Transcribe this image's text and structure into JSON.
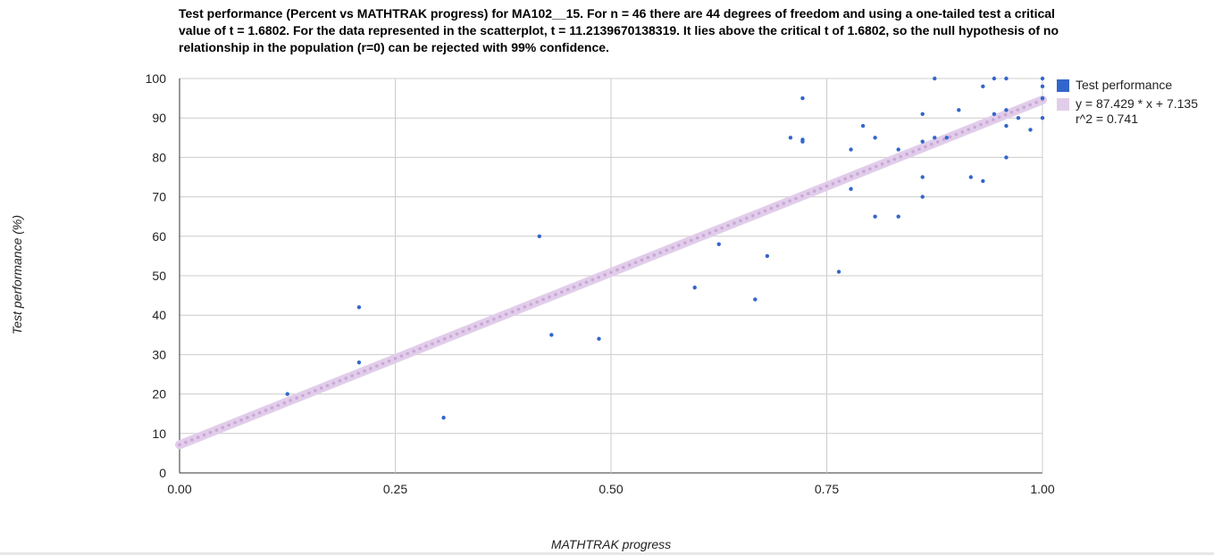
{
  "chart_data": {
    "type": "scatter",
    "title": "Test performance (Percent vs MATHTRAK progress) for MA102__15. For n = 46 there are 44 degrees of freedom and using a one-tailed test a critical value of t = 1.6802. For the data represented in the scatterplot, t = 11.2139670138319. It lies above the critical t of 1.6802, so the null hypothesis of no relationship in the population (r=0) can be rejected with 99% confidence.",
    "xlabel": "MATHTRAK progress",
    "ylabel": "Test performance (%)",
    "xlim": [
      0,
      1
    ],
    "ylim": [
      0,
      100
    ],
    "x_ticks": [
      "0.00",
      "0.25",
      "0.50",
      "0.75",
      "1.00"
    ],
    "x_tick_values": [
      0,
      0.25,
      0.5,
      0.75,
      1
    ],
    "y_ticks": [
      "0",
      "10",
      "20",
      "30",
      "40",
      "50",
      "60",
      "70",
      "80",
      "90",
      "100"
    ],
    "y_tick_values": [
      0,
      10,
      20,
      30,
      40,
      50,
      60,
      70,
      80,
      90,
      100
    ],
    "grid": true,
    "legend_position": "right",
    "series": [
      {
        "name": "Test performance",
        "color": "#3366cc",
        "points": [
          [
            0.125,
            20
          ],
          [
            0.208,
            42
          ],
          [
            0.208,
            28
          ],
          [
            0.306,
            14
          ],
          [
            0.417,
            60
          ],
          [
            0.431,
            35
          ],
          [
            0.486,
            34
          ],
          [
            0.597,
            47
          ],
          [
            0.625,
            58
          ],
          [
            0.667,
            44
          ],
          [
            0.681,
            55
          ],
          [
            0.708,
            85
          ],
          [
            0.722,
            95
          ],
          [
            0.722,
            84
          ],
          [
            0.722,
            84.5
          ],
          [
            0.764,
            51
          ],
          [
            0.778,
            82
          ],
          [
            0.778,
            72
          ],
          [
            0.792,
            88
          ],
          [
            0.806,
            85
          ],
          [
            0.806,
            65
          ],
          [
            0.833,
            82
          ],
          [
            0.833,
            65
          ],
          [
            0.861,
            91
          ],
          [
            0.861,
            84
          ],
          [
            0.861,
            75
          ],
          [
            0.861,
            70
          ],
          [
            0.875,
            100
          ],
          [
            0.875,
            85
          ],
          [
            0.889,
            85
          ],
          [
            0.903,
            92
          ],
          [
            0.917,
            75
          ],
          [
            0.931,
            98
          ],
          [
            0.931,
            74
          ],
          [
            0.944,
            100
          ],
          [
            0.944,
            91
          ],
          [
            0.958,
            100
          ],
          [
            0.958,
            92
          ],
          [
            0.958,
            88
          ],
          [
            0.958,
            80
          ],
          [
            0.972,
            90
          ],
          [
            0.986,
            87
          ],
          [
            1.0,
            100
          ],
          [
            1.0,
            98
          ],
          [
            1.0,
            95
          ],
          [
            1.0,
            90
          ]
        ]
      }
    ],
    "trendline": {
      "label": "y = 87.429 * x + 7.135\nr^2 = 0.741",
      "slope": 87.429,
      "intercept": 7.135,
      "color": "#e1cdea",
      "dot_color": "#c9a8d6"
    }
  }
}
